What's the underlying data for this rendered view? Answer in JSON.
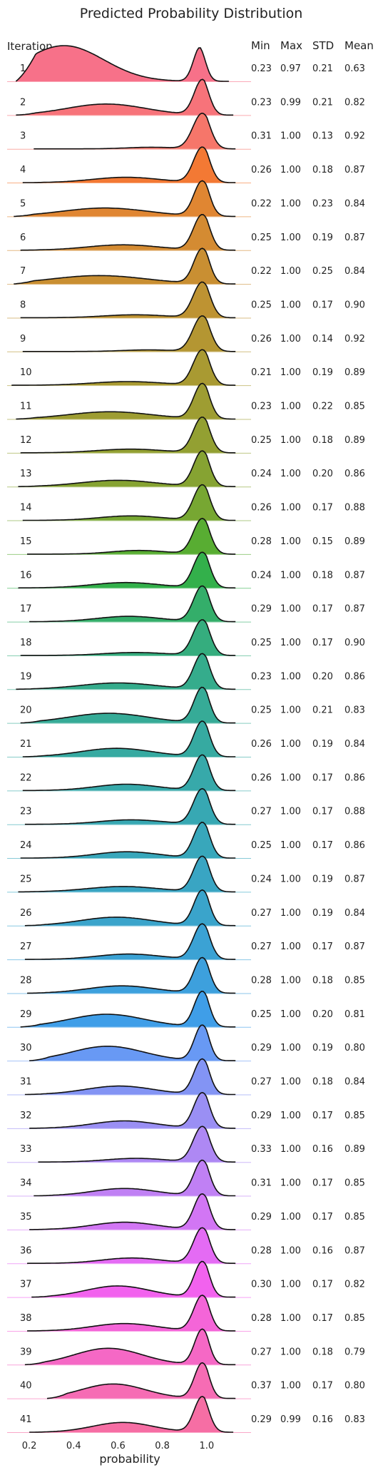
{
  "chart_data": {
    "type": "area",
    "chart_style": "ridgeline",
    "title": "Predicted Probability Distribution",
    "xlabel": "probability",
    "row_header": "Iteration",
    "column_headers": [
      "Min",
      "Max",
      "STD",
      "Mean"
    ],
    "xticks": [
      0.2,
      0.4,
      0.6,
      0.8,
      "1.0"
    ],
    "xlim": [
      0.1,
      1.2
    ],
    "grid": false,
    "rows": [
      {
        "iteration": "1",
        "min": "0.23",
        "max": "0.97",
        "std": "0.21",
        "mean": "0.63",
        "color": "#f77189"
      },
      {
        "iteration": "2",
        "min": "0.23",
        "max": "0.99",
        "std": "0.21",
        "mean": "0.82",
        "color": "#f7737a"
      },
      {
        "iteration": "3",
        "min": "0.31",
        "max": "1.00",
        "std": "0.13",
        "mean": "0.92",
        "color": "#f6766a"
      },
      {
        "iteration": "4",
        "min": "0.26",
        "max": "1.00",
        "std": "0.18",
        "mean": "0.87",
        "color": "#f37934"
      },
      {
        "iteration": "5",
        "min": "0.22",
        "max": "1.00",
        "std": "0.23",
        "mean": "0.84",
        "color": "#e08632"
      },
      {
        "iteration": "6",
        "min": "0.25",
        "max": "1.00",
        "std": "0.19",
        "mean": "0.87",
        "color": "#d48b32"
      },
      {
        "iteration": "7",
        "min": "0.22",
        "max": "1.00",
        "std": "0.25",
        "mean": "0.84",
        "color": "#c98f32"
      },
      {
        "iteration": "8",
        "min": "0.25",
        "max": "1.00",
        "std": "0.17",
        "mean": "0.90",
        "color": "#be9332"
      },
      {
        "iteration": "9",
        "min": "0.26",
        "max": "1.00",
        "std": "0.14",
        "mean": "0.92",
        "color": "#b49632"
      },
      {
        "iteration": "10",
        "min": "0.21",
        "max": "1.00",
        "std": "0.19",
        "mean": "0.89",
        "color": "#a99a32"
      },
      {
        "iteration": "11",
        "min": "0.23",
        "max": "1.00",
        "std": "0.22",
        "mean": "0.85",
        "color": "#9e9d32"
      },
      {
        "iteration": "12",
        "min": "0.25",
        "max": "1.00",
        "std": "0.18",
        "mean": "0.89",
        "color": "#93a032"
      },
      {
        "iteration": "13",
        "min": "0.24",
        "max": "1.00",
        "std": "0.20",
        "mean": "0.86",
        "color": "#86a332"
      },
      {
        "iteration": "14",
        "min": "0.26",
        "max": "1.00",
        "std": "0.17",
        "mean": "0.88",
        "color": "#77a732"
      },
      {
        "iteration": "15",
        "min": "0.28",
        "max": "1.00",
        "std": "0.15",
        "mean": "0.89",
        "color": "#58ad32"
      },
      {
        "iteration": "16",
        "min": "0.24",
        "max": "1.00",
        "std": "0.18",
        "mean": "0.87",
        "color": "#33b04b"
      },
      {
        "iteration": "17",
        "min": "0.29",
        "max": "1.00",
        "std": "0.17",
        "mean": "0.87",
        "color": "#34ae6a"
      },
      {
        "iteration": "18",
        "min": "0.25",
        "max": "1.00",
        "std": "0.17",
        "mean": "0.90",
        "color": "#35ad7e"
      },
      {
        "iteration": "19",
        "min": "0.23",
        "max": "1.00",
        "std": "0.20",
        "mean": "0.86",
        "color": "#35ac8c"
      },
      {
        "iteration": "20",
        "min": "0.25",
        "max": "1.00",
        "std": "0.21",
        "mean": "0.83",
        "color": "#36ab97"
      },
      {
        "iteration": "21",
        "min": "0.26",
        "max": "1.00",
        "std": "0.19",
        "mean": "0.84",
        "color": "#36aaa1"
      },
      {
        "iteration": "22",
        "min": "0.26",
        "max": "1.00",
        "std": "0.17",
        "mean": "0.86",
        "color": "#37a9aa"
      },
      {
        "iteration": "23",
        "min": "0.27",
        "max": "1.00",
        "std": "0.17",
        "mean": "0.88",
        "color": "#37a8b3"
      },
      {
        "iteration": "24",
        "min": "0.25",
        "max": "1.00",
        "std": "0.17",
        "mean": "0.86",
        "color": "#38a7bb"
      },
      {
        "iteration": "25",
        "min": "0.24",
        "max": "1.00",
        "std": "0.19",
        "mean": "0.87",
        "color": "#39a5c3"
      },
      {
        "iteration": "26",
        "min": "0.27",
        "max": "1.00",
        "std": "0.19",
        "mean": "0.84",
        "color": "#3aa4cb"
      },
      {
        "iteration": "27",
        "min": "0.27",
        "max": "1.00",
        "std": "0.17",
        "mean": "0.87",
        "color": "#3ba2d4"
      },
      {
        "iteration": "28",
        "min": "0.28",
        "max": "1.00",
        "std": "0.18",
        "mean": "0.85",
        "color": "#3da0dd"
      },
      {
        "iteration": "29",
        "min": "0.25",
        "max": "1.00",
        "std": "0.20",
        "mean": "0.81",
        "color": "#3f9ee8"
      },
      {
        "iteration": "30",
        "min": "0.29",
        "max": "1.00",
        "std": "0.19",
        "mean": "0.80",
        "color": "#6899f4"
      },
      {
        "iteration": "31",
        "min": "0.27",
        "max": "1.00",
        "std": "0.18",
        "mean": "0.84",
        "color": "#8394f4"
      },
      {
        "iteration": "32",
        "min": "0.29",
        "max": "1.00",
        "std": "0.17",
        "mean": "0.85",
        "color": "#9a8ff4"
      },
      {
        "iteration": "33",
        "min": "0.33",
        "max": "1.00",
        "std": "0.16",
        "mean": "0.89",
        "color": "#ae88f4"
      },
      {
        "iteration": "34",
        "min": "0.31",
        "max": "1.00",
        "std": "0.17",
        "mean": "0.85",
        "color": "#c080f4"
      },
      {
        "iteration": "35",
        "min": "0.29",
        "max": "1.00",
        "std": "0.17",
        "mean": "0.85",
        "color": "#d276f4"
      },
      {
        "iteration": "36",
        "min": "0.28",
        "max": "1.00",
        "std": "0.16",
        "mean": "0.87",
        "color": "#e46bf4"
      },
      {
        "iteration": "37",
        "min": "0.30",
        "max": "1.00",
        "std": "0.17",
        "mean": "0.82",
        "color": "#f262ee"
      },
      {
        "iteration": "38",
        "min": "0.28",
        "max": "1.00",
        "std": "0.17",
        "mean": "0.85",
        "color": "#f465d8"
      },
      {
        "iteration": "39",
        "min": "0.27",
        "max": "1.00",
        "std": "0.18",
        "mean": "0.79",
        "color": "#f568c5"
      },
      {
        "iteration": "40",
        "min": "0.37",
        "max": "1.00",
        "std": "0.17",
        "mean": "0.80",
        "color": "#f66cb4"
      },
      {
        "iteration": "41",
        "min": "0.29",
        "max": "0.99",
        "std": "0.16",
        "mean": "0.83",
        "color": "#f66ea4"
      }
    ]
  }
}
